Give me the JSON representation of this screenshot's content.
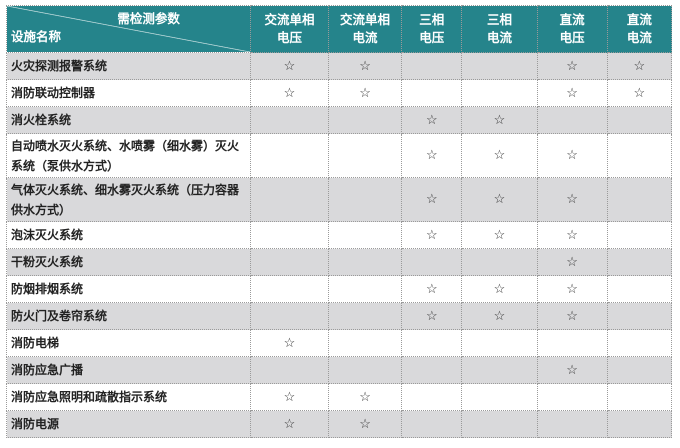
{
  "header": {
    "param_label": "需检测参数",
    "facility_label": "设施名称",
    "columns": [
      [
        "交流单相",
        "电压"
      ],
      [
        "交流单相",
        "电流"
      ],
      [
        "三相",
        "电压"
      ],
      [
        "三相",
        "电流"
      ],
      [
        "直流",
        "电压"
      ],
      [
        "直流",
        "电流"
      ]
    ]
  },
  "mark": "☆",
  "rows": [
    {
      "name": "火灾探测报警系统",
      "marks": [
        1,
        1,
        0,
        0,
        1,
        1
      ]
    },
    {
      "name": "消防联动控制器",
      "marks": [
        1,
        1,
        0,
        0,
        1,
        1
      ]
    },
    {
      "name": "消火栓系统",
      "marks": [
        0,
        0,
        1,
        1,
        0,
        0
      ]
    },
    {
      "name": "自动喷水灭火系统、水喷雾（细水雾）灭火系统（泵供水方式）",
      "marks": [
        0,
        0,
        1,
        1,
        1,
        0
      ]
    },
    {
      "name": "气体灭火系统、细水雾灭火系统（压力容器供水方式）",
      "marks": [
        0,
        0,
        1,
        1,
        1,
        0
      ]
    },
    {
      "name": "泡沫灭火系统",
      "marks": [
        0,
        0,
        1,
        1,
        1,
        0
      ]
    },
    {
      "name": "干粉灭火系统",
      "marks": [
        0,
        0,
        0,
        0,
        1,
        0
      ]
    },
    {
      "name": "防烟排烟系统",
      "marks": [
        0,
        0,
        1,
        1,
        1,
        0
      ]
    },
    {
      "name": "防火门及卷帘系统",
      "marks": [
        0,
        0,
        1,
        1,
        1,
        0
      ]
    },
    {
      "name": "消防电梯",
      "marks": [
        1,
        0,
        0,
        0,
        0,
        0
      ]
    },
    {
      "name": "消防应急广播",
      "marks": [
        0,
        0,
        0,
        0,
        1,
        0
      ]
    },
    {
      "name": "消防应急照明和疏散指示系统",
      "marks": [
        1,
        1,
        0,
        0,
        0,
        0
      ]
    },
    {
      "name": "消防电源",
      "marks": [
        1,
        1,
        0,
        0,
        0,
        0
      ]
    }
  ]
}
